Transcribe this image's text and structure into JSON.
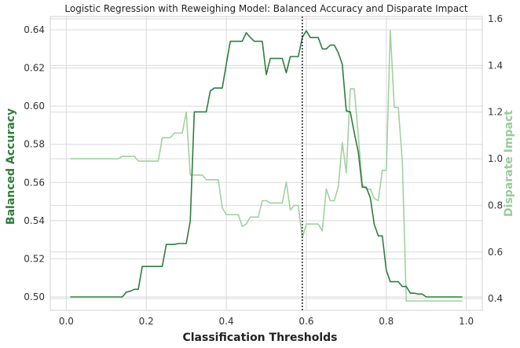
{
  "chart_data": {
    "type": "line",
    "title": "Logistic Regression with Reweighing Model: Balanced Accuracy and Disparate Impact",
    "xlabel": "Classification Thresholds",
    "ylabel_left": "Balanced Accuracy",
    "ylabel_right": "Disparate Impact",
    "xlim": [
      -0.04,
      1.04
    ],
    "ylim_left": [
      0.493,
      0.647
    ],
    "ylim_right": [
      0.35,
      1.61
    ],
    "x_ticks": [
      "0.0",
      "0.2",
      "0.4",
      "0.6",
      "0.8",
      "1.0"
    ],
    "y_ticks_left": [
      "0.50",
      "0.52",
      "0.54",
      "0.56",
      "0.58",
      "0.60",
      "0.62",
      "0.64"
    ],
    "y_ticks_right": [
      "0.4",
      "0.6",
      "0.8",
      "1.0",
      "1.2",
      "1.4",
      "1.6"
    ],
    "grid": true,
    "vline": {
      "x": 0.59,
      "style": "dotted"
    },
    "colors": {
      "balanced_accuracy": "#2e7d3e",
      "disparate_impact": "#9fd29f",
      "vline": "#222222"
    },
    "series": [
      {
        "axis": "left",
        "x": [
          0.01,
          0.02,
          0.03,
          0.04,
          0.05,
          0.06,
          0.07,
          0.08,
          0.09,
          0.1,
          0.11,
          0.12,
          0.13,
          0.14,
          0.15,
          0.16,
          0.17,
          0.18,
          0.19,
          0.2,
          0.21,
          0.22,
          0.23,
          0.24,
          0.25,
          0.26,
          0.27,
          0.28,
          0.29,
          0.3,
          0.31,
          0.32,
          0.33,
          0.34,
          0.35,
          0.36,
          0.37,
          0.38,
          0.39,
          0.4,
          0.41,
          0.42,
          0.43,
          0.44,
          0.45,
          0.46,
          0.47,
          0.48,
          0.49,
          0.5,
          0.51,
          0.52,
          0.53,
          0.54,
          0.55,
          0.56,
          0.57,
          0.58,
          0.59,
          0.6,
          0.61,
          0.62,
          0.63,
          0.64,
          0.65,
          0.66,
          0.67,
          0.68,
          0.69,
          0.7,
          0.71,
          0.72,
          0.73,
          0.74,
          0.75,
          0.76,
          0.77,
          0.78,
          0.79,
          0.8,
          0.81,
          0.82,
          0.83,
          0.84,
          0.85,
          0.86,
          0.87,
          0.88,
          0.89,
          0.9,
          0.91,
          0.92,
          0.93,
          0.94,
          0.95,
          0.96,
          0.97,
          0.98,
          0.99
        ],
        "values": [
          0.5,
          0.5,
          0.5,
          0.5,
          0.5,
          0.5,
          0.5,
          0.5,
          0.5,
          0.5,
          0.5,
          0.5,
          0.5,
          0.5,
          0.5025,
          0.503,
          0.504,
          0.504,
          0.516,
          0.516,
          0.516,
          0.516,
          0.516,
          0.516,
          0.5275,
          0.5275,
          0.5275,
          0.528,
          0.528,
          0.528,
          0.54,
          0.597,
          0.597,
          0.597,
          0.597,
          0.608,
          0.6095,
          0.6095,
          0.6095,
          0.622,
          0.634,
          0.634,
          0.634,
          0.634,
          0.6385,
          0.636,
          0.634,
          0.634,
          0.634,
          0.6165,
          0.625,
          0.625,
          0.625,
          0.625,
          0.6175,
          0.626,
          0.626,
          0.626,
          0.636,
          0.6395,
          0.636,
          0.636,
          0.636,
          0.63,
          0.63,
          0.632,
          0.632,
          0.628,
          0.622,
          0.5975,
          0.597,
          0.586,
          0.576,
          0.5575,
          0.5575,
          0.552,
          0.538,
          0.532,
          0.532,
          0.514,
          0.508,
          0.508,
          0.508,
          0.5055,
          0.5055,
          0.502,
          0.502,
          0.5015,
          0.5015,
          0.5,
          0.5,
          0.5,
          0.5,
          0.5,
          0.5,
          0.5,
          0.5,
          0.5,
          0.5
        ]
      },
      {
        "axis": "right",
        "x": [
          0.01,
          0.02,
          0.03,
          0.04,
          0.05,
          0.06,
          0.07,
          0.08,
          0.09,
          0.1,
          0.11,
          0.12,
          0.13,
          0.14,
          0.15,
          0.16,
          0.17,
          0.18,
          0.19,
          0.2,
          0.21,
          0.22,
          0.23,
          0.24,
          0.25,
          0.26,
          0.27,
          0.28,
          0.29,
          0.3,
          0.31,
          0.32,
          0.33,
          0.34,
          0.35,
          0.36,
          0.37,
          0.38,
          0.39,
          0.4,
          0.41,
          0.42,
          0.43,
          0.44,
          0.45,
          0.46,
          0.47,
          0.48,
          0.49,
          0.5,
          0.51,
          0.52,
          0.53,
          0.54,
          0.55,
          0.56,
          0.57,
          0.58,
          0.59,
          0.6,
          0.61,
          0.62,
          0.63,
          0.64,
          0.65,
          0.66,
          0.67,
          0.68,
          0.69,
          0.7,
          0.71,
          0.72,
          0.73,
          0.74,
          0.75,
          0.76,
          0.77,
          0.78,
          0.79,
          0.8,
          0.81,
          0.82,
          0.83,
          0.84,
          0.85,
          0.86,
          0.87,
          0.88,
          0.89,
          0.9,
          0.91,
          0.92,
          0.93,
          0.94,
          0.95,
          0.96,
          0.97,
          0.98,
          0.99
        ],
        "values": [
          1.0,
          1.0,
          1.0,
          1.0,
          1.0,
          1.0,
          1.0,
          1.0,
          1.0,
          1.0,
          1.0,
          1.0,
          1.0,
          1.01,
          1.01,
          1.01,
          1.01,
          0.99,
          0.99,
          0.99,
          0.99,
          0.99,
          0.99,
          1.09,
          1.09,
          1.09,
          1.11,
          1.11,
          1.11,
          1.2,
          0.93,
          0.93,
          0.93,
          0.93,
          0.91,
          0.91,
          0.91,
          0.91,
          0.79,
          0.76,
          0.76,
          0.76,
          0.76,
          0.71,
          0.72,
          0.75,
          0.75,
          0.75,
          0.82,
          0.82,
          0.81,
          0.81,
          0.81,
          0.81,
          0.9,
          0.78,
          0.8,
          0.8,
          0.66,
          0.72,
          0.72,
          0.72,
          0.72,
          0.69,
          0.87,
          0.82,
          0.82,
          0.88,
          1.07,
          0.94,
          1.3,
          1.3,
          1.1,
          0.89,
          0.87,
          0.87,
          0.83,
          0.82,
          0.95,
          0.95,
          1.55,
          1.22,
          1.22,
          0.99,
          0.39,
          0.39,
          0.39,
          0.39,
          0.39,
          0.39,
          0.39,
          0.39,
          0.39,
          0.39,
          0.39,
          0.39,
          0.39,
          0.39,
          0.39
        ]
      }
    ]
  }
}
